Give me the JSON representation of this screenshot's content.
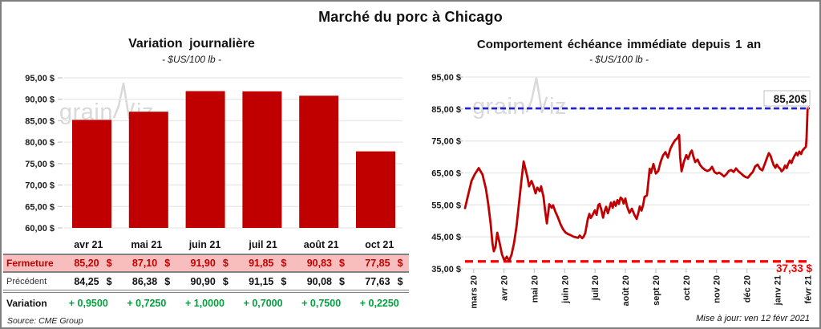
{
  "page_title": "Marché du porc à Chicago",
  "watermark_text": {
    "part1": "grain",
    "part2": "iz"
  },
  "left_panel": {
    "title": "Variation journalière",
    "subtitle": "- $US/100 lb -",
    "source": "Source: CME Group",
    "table": {
      "columns": [
        "avr 21",
        "mai 21",
        "juin 21",
        "juil 21",
        "août 21",
        "oct 21"
      ],
      "currency": "$",
      "rows": [
        {
          "label": "Fermeture",
          "style": "close",
          "values": [
            "85,20",
            "87,10",
            "91,90",
            "91,85",
            "90,83",
            "77,85"
          ]
        },
        {
          "label": "Précédent",
          "style": "prev",
          "values": [
            "84,25",
            "86,38",
            "90,90",
            "91,15",
            "90,08",
            "77,63"
          ]
        },
        {
          "label": "Variation",
          "style": "var",
          "values": [
            "+ 0,9500",
            "+ 0,7250",
            "+ 1,0000",
            "+ 0,7000",
            "+ 0,7500",
            "+ 0,2250"
          ]
        }
      ]
    }
  },
  "right_panel": {
    "title": "Comportement échéance immédiate depuis 1 an",
    "subtitle": "- $US/100 lb -",
    "update_note": "Mise à jour: ven 12 févr 2021"
  },
  "colors": {
    "bar_red": "#C00000",
    "line_red": "#C00000",
    "dash_blue": "#2222CC",
    "dash_red": "#FF0000",
    "table_pink": "#F8BEBE",
    "close_text_red": "#C00000",
    "variation_green": "#00A13D",
    "gridline": "#E7E7E7",
    "tick": "#C9C9C9",
    "watermark": "#D9D9D9",
    "label_text": "#1a1a1a"
  },
  "chart_data": [
    {
      "id": "daily-variation-bars",
      "type": "bar",
      "title": "Variation journalière",
      "subtitle": "- $US/100 lb -",
      "categories": [
        "avr 21",
        "mai 21",
        "juin 21",
        "juil 21",
        "août 21",
        "oct 21"
      ],
      "values": [
        85.2,
        87.1,
        91.9,
        91.85,
        90.83,
        77.85
      ],
      "ylim": [
        60,
        95
      ],
      "ytick_step": 5,
      "ytick_suffix": " $",
      "grid": true,
      "legend": "none"
    },
    {
      "id": "front-month-line",
      "type": "line",
      "title": "Comportement échéance immédiate depuis 1 an",
      "subtitle": "- $US/100 lb -",
      "x_labels": [
        "mars 20",
        "avr 20",
        "mai 20",
        "juin 20",
        "juil 20",
        "août 20",
        "sept 20",
        "oct 20",
        "nov 20",
        "déc 20",
        "janv 21",
        "févr 21"
      ],
      "x_range_note": "fraction of period late févr 2020 → 12 févr 2021",
      "ylim": [
        35,
        95
      ],
      "ytick_step": 10,
      "ytick_suffix": " $",
      "grid": true,
      "max_line": {
        "value": 85.2,
        "label": "85,20 $",
        "label2": "85,20$"
      },
      "min_line": {
        "value": 37.33,
        "label": "37,33 $"
      },
      "points": [
        [
          0,
          54
        ],
        [
          0.009,
          58
        ],
        [
          0.019,
          62.5
        ],
        [
          0.028,
          64.5
        ],
        [
          0.04,
          66.5
        ],
        [
          0.051,
          64.5
        ],
        [
          0.061,
          60
        ],
        [
          0.068,
          55
        ],
        [
          0.075,
          49
        ],
        [
          0.08,
          43
        ],
        [
          0.084,
          40.5
        ],
        [
          0.089,
          41.8
        ],
        [
          0.094,
          46.3
        ],
        [
          0.101,
          43
        ],
        [
          0.108,
          39.5
        ],
        [
          0.115,
          37.6
        ],
        [
          0.122,
          38.8
        ],
        [
          0.129,
          37.5
        ],
        [
          0.136,
          39.5
        ],
        [
          0.143,
          43
        ],
        [
          0.15,
          48
        ],
        [
          0.157,
          55
        ],
        [
          0.164,
          62
        ],
        [
          0.171,
          68.6
        ],
        [
          0.178,
          65.5
        ],
        [
          0.183,
          63.2
        ],
        [
          0.187,
          60.8
        ],
        [
          0.194,
          62.5
        ],
        [
          0.199,
          61.2
        ],
        [
          0.206,
          58.6
        ],
        [
          0.211,
          60.4
        ],
        [
          0.218,
          59.3
        ],
        [
          0.222,
          60.8
        ],
        [
          0.229,
          57.5
        ],
        [
          0.234,
          53
        ],
        [
          0.239,
          49.2
        ],
        [
          0.246,
          55.2
        ],
        [
          0.253,
          54.1
        ],
        [
          0.257,
          54.9
        ],
        [
          0.264,
          52.8
        ],
        [
          0.272,
          50.9
        ],
        [
          0.279,
          48.9
        ],
        [
          0.286,
          47.4
        ],
        [
          0.293,
          46.4
        ],
        [
          0.3,
          45.9
        ],
        [
          0.309,
          45.5
        ],
        [
          0.316,
          45.1
        ],
        [
          0.323,
          44.9
        ],
        [
          0.33,
          44.7
        ],
        [
          0.335,
          45.4
        ],
        [
          0.342,
          44.6
        ],
        [
          0.346,
          45
        ],
        [
          0.351,
          46.2
        ],
        [
          0.358,
          50.4
        ],
        [
          0.363,
          52.2
        ],
        [
          0.367,
          50.9
        ],
        [
          0.372,
          51.8
        ],
        [
          0.379,
          53.3
        ],
        [
          0.384,
          51.9
        ],
        [
          0.389,
          54.9
        ],
        [
          0.393,
          55.3
        ],
        [
          0.398,
          53.4
        ],
        [
          0.403,
          51
        ],
        [
          0.407,
          52.9
        ],
        [
          0.412,
          54.4
        ],
        [
          0.417,
          52.4
        ],
        [
          0.421,
          53.8
        ],
        [
          0.426,
          55.7
        ],
        [
          0.431,
          54.1
        ],
        [
          0.435,
          56
        ],
        [
          0.44,
          54.7
        ],
        [
          0.445,
          56.5
        ],
        [
          0.449,
          55.3
        ],
        [
          0.454,
          57.3
        ],
        [
          0.459,
          56.8
        ],
        [
          0.463,
          55.4
        ],
        [
          0.468,
          57
        ],
        [
          0.473,
          54.5
        ],
        [
          0.48,
          52.5
        ],
        [
          0.487,
          53.8
        ],
        [
          0.494,
          52
        ],
        [
          0.501,
          50.6
        ],
        [
          0.506,
          52.5
        ],
        [
          0.51,
          54.5
        ],
        [
          0.515,
          53.2
        ],
        [
          0.52,
          55
        ],
        [
          0.524,
          57.5
        ],
        [
          0.531,
          58
        ],
        [
          0.536,
          63
        ],
        [
          0.539,
          66.3
        ],
        [
          0.543,
          65
        ],
        [
          0.55,
          67.8
        ],
        [
          0.557,
          64.8
        ],
        [
          0.564,
          65.6
        ],
        [
          0.571,
          68.5
        ],
        [
          0.578,
          70.5
        ],
        [
          0.585,
          71.5
        ],
        [
          0.592,
          69.8
        ],
        [
          0.599,
          72.5
        ],
        [
          0.606,
          74
        ],
        [
          0.613,
          75.2
        ],
        [
          0.62,
          75.9
        ],
        [
          0.625,
          76.9
        ],
        [
          0.628,
          70
        ],
        [
          0.632,
          65.5
        ],
        [
          0.639,
          68.5
        ],
        [
          0.646,
          70.6
        ],
        [
          0.651,
          69.4
        ],
        [
          0.658,
          71.4
        ],
        [
          0.662,
          72
        ],
        [
          0.667,
          70
        ],
        [
          0.672,
          68.4
        ],
        [
          0.679,
          69.2
        ],
        [
          0.686,
          67.5
        ],
        [
          0.693,
          66.6
        ],
        [
          0.7,
          66
        ],
        [
          0.707,
          65.6
        ],
        [
          0.714,
          65.9
        ],
        [
          0.721,
          66.9
        ],
        [
          0.728,
          65.3
        ],
        [
          0.735,
          64.8
        ],
        [
          0.742,
          65.1
        ],
        [
          0.749,
          64.6
        ],
        [
          0.756,
          63.9
        ],
        [
          0.763,
          64.6
        ],
        [
          0.77,
          65.6
        ],
        [
          0.777,
          65.9
        ],
        [
          0.784,
          65.3
        ],
        [
          0.791,
          66.4
        ],
        [
          0.798,
          65.5
        ],
        [
          0.805,
          64.9
        ],
        [
          0.812,
          64.2
        ],
        [
          0.819,
          63.7
        ],
        [
          0.826,
          63.5
        ],
        [
          0.833,
          64.5
        ],
        [
          0.84,
          65.3
        ],
        [
          0.847,
          67
        ],
        [
          0.854,
          67.6
        ],
        [
          0.861,
          66.3
        ],
        [
          0.868,
          65.8
        ],
        [
          0.875,
          67.8
        ],
        [
          0.882,
          69.9
        ],
        [
          0.887,
          71.2
        ],
        [
          0.892,
          70.3
        ],
        [
          0.896,
          68.9
        ],
        [
          0.901,
          67.4
        ],
        [
          0.906,
          66.6
        ],
        [
          0.91,
          67.6
        ],
        [
          0.915,
          66.8
        ],
        [
          0.92,
          66.3
        ],
        [
          0.924,
          65.5
        ],
        [
          0.929,
          66
        ],
        [
          0.934,
          67.3
        ],
        [
          0.939,
          66.5
        ],
        [
          0.943,
          67.7
        ],
        [
          0.948,
          68.9
        ],
        [
          0.953,
          68.1
        ],
        [
          0.957,
          69.3
        ],
        [
          0.962,
          70.4
        ],
        [
          0.967,
          71.3
        ],
        [
          0.971,
          70.5
        ],
        [
          0.976,
          71.7
        ],
        [
          0.981,
          70.9
        ],
        [
          0.985,
          72
        ],
        [
          0.99,
          72.6
        ],
        [
          0.995,
          73.2
        ],
        [
          0.997,
          76
        ],
        [
          1,
          85.2
        ]
      ]
    }
  ]
}
